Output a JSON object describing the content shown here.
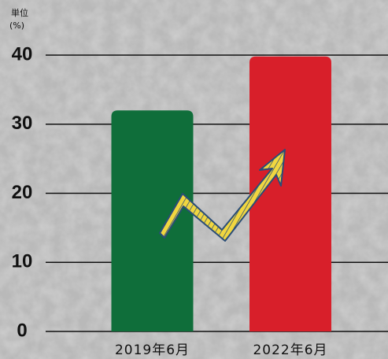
{
  "chart_data": {
    "type": "bar",
    "unit": [
      "単位",
      "(%)"
    ],
    "categories": [
      "2019年6月",
      "2022年6月"
    ],
    "values": [
      32,
      39.8
    ],
    "colors": [
      "#0f6e3a",
      "#d81f2a"
    ],
    "ylim": [
      0,
      40
    ],
    "yticks": [
      0,
      10,
      20,
      30,
      40
    ],
    "grid": true
  }
}
